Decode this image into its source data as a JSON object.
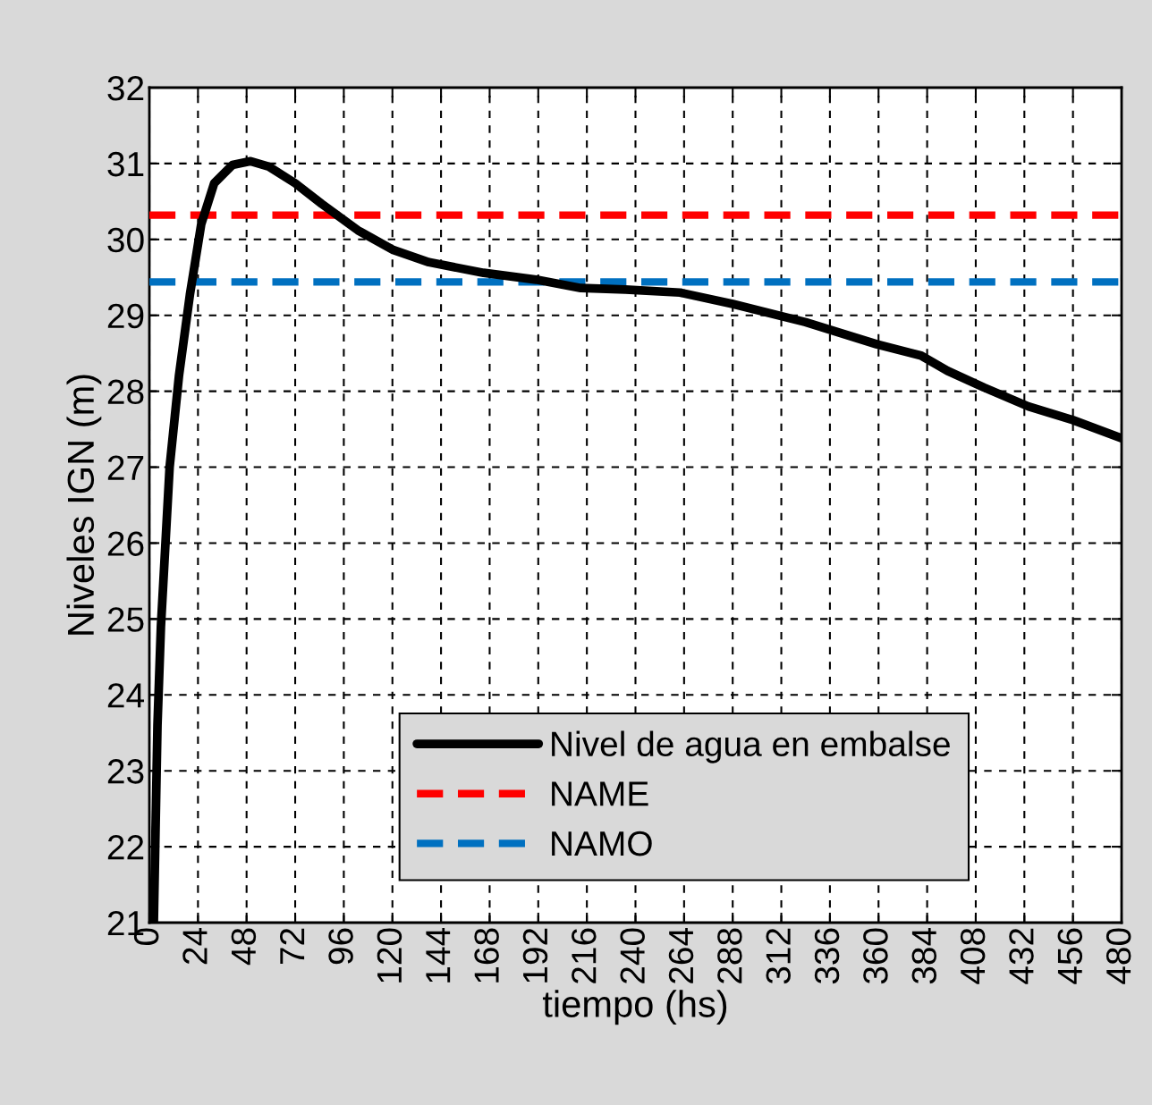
{
  "chart_data": {
    "type": "line",
    "xlabel": "tiempo (hs)",
    "ylabel": "Niveles IGN (m)",
    "x": [
      2.2,
      4,
      5.7,
      10,
      14.6,
      20,
      25.6,
      32,
      41,
      50,
      59,
      72,
      85,
      103,
      120.5,
      138,
      165,
      191,
      213,
      235,
      262,
      288,
      324,
      359,
      381,
      394,
      412,
      434,
      456,
      480
    ],
    "series": [
      {
        "name": "Nivel de agua en embalse",
        "color": "#000000",
        "values": [
          21,
          23.6,
          24.9,
          27.0,
          28.2,
          29.27,
          30.2,
          30.74,
          30.98,
          31.03,
          30.96,
          30.74,
          30.47,
          30.12,
          29.86,
          29.7,
          29.56,
          29.47,
          29.36,
          29.34,
          29.3,
          29.15,
          28.91,
          28.62,
          28.47,
          28.27,
          28.05,
          27.8,
          27.62,
          27.38
        ]
      }
    ],
    "ref_lines": [
      {
        "axis": "y",
        "value": 30.32,
        "label": "NAME",
        "color": "#ff0000",
        "line_style": "dashed"
      },
      {
        "axis": "y",
        "value": 29.44,
        "label": "NAMO",
        "color": "#0070c0",
        "line_style": "dashed"
      }
    ],
    "xlim": [
      0,
      480
    ],
    "xticks": [
      0,
      24,
      48,
      72,
      96,
      120,
      144,
      168,
      192,
      216,
      240,
      264,
      288,
      312,
      336,
      360,
      384,
      408,
      432,
      456,
      480
    ],
    "ylim": [
      21,
      32
    ],
    "yticks": [
      21,
      22,
      23,
      24,
      25,
      26,
      27,
      28,
      29,
      30,
      31,
      32
    ],
    "grid": true,
    "legend": "bottom",
    "marker": "none",
    "line_style": "solid"
  }
}
